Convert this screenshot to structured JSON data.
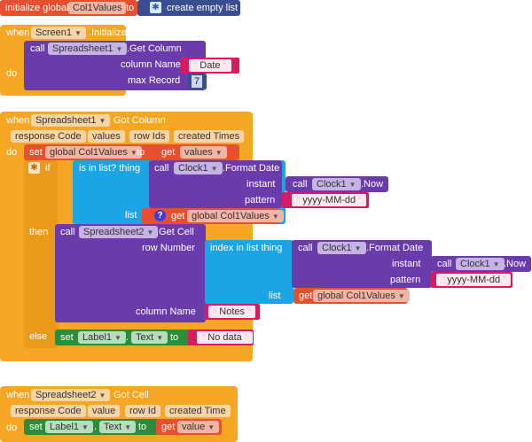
{
  "b1": {
    "init": "initialize global",
    "var": "Col1Values",
    "to": "to",
    "create": "create empty list"
  },
  "b2": {
    "when": "when",
    "component": "Screen1",
    "event": ".Initialize",
    "do": "do",
    "call": "call",
    "target": "Spreadsheet1",
    "method": ".Get Column",
    "col_name": "column Name",
    "col_value": "Date",
    "max_record": "max Record",
    "max_value": "7"
  },
  "b3": {
    "when": "when",
    "component": "Spreadsheet1",
    "event": "Got Column",
    "params": [
      "response Code",
      "values",
      "row Ids",
      "created Times"
    ],
    "do": "do",
    "set": "set",
    "global_var": "global Col1Values",
    "to": "to",
    "get": "get",
    "values": "values",
    "if": "if",
    "is_in_list": "is in list? thing",
    "call": "call",
    "clock": "Clock1",
    "format_date": ".Format Date",
    "instant": "instant",
    "now": ".Now",
    "pattern": "pattern",
    "pattern_value": "yyyy-MM-dd",
    "list": "list",
    "then": "then",
    "sheet2": "Spreadsheet2",
    "get_cell": ".Get Cell",
    "row_number": "row Number",
    "index_in_list": "index in list  thing",
    "column_name": "column Name",
    "notes": "Notes",
    "else": "else",
    "label": "Label1",
    "text": "Text",
    "no_data": "No data"
  },
  "b4": {
    "when": "when",
    "component": "Spreadsheet2",
    "event": "Got Cell",
    "params": [
      "response Code",
      "value",
      "row Id",
      "created Time"
    ],
    "do": "do",
    "set": "set",
    "label": "Label1",
    "text": "Text",
    "to": "to",
    "get": "get",
    "value": "value"
  }
}
